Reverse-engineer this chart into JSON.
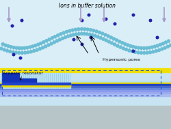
{
  "bg_top": "#daeef7",
  "bg_mid": "#cce8f5",
  "bg_bottom": "#b8c5c8",
  "yellow_stripe": "#f0e000",
  "lipid_head_color": "#6bbdd4",
  "lipid_tail_color": "#99d4e8",
  "ion_color": "#2020aa",
  "arrow_color": "#a898c8",
  "label_ions": "Ions in buffer solution",
  "label_pores": "Hypersonic pores",
  "label_resonator": "Acoustic resonator",
  "dashed_box_color": "#2255cc",
  "annotation_fontsize": 5.5
}
